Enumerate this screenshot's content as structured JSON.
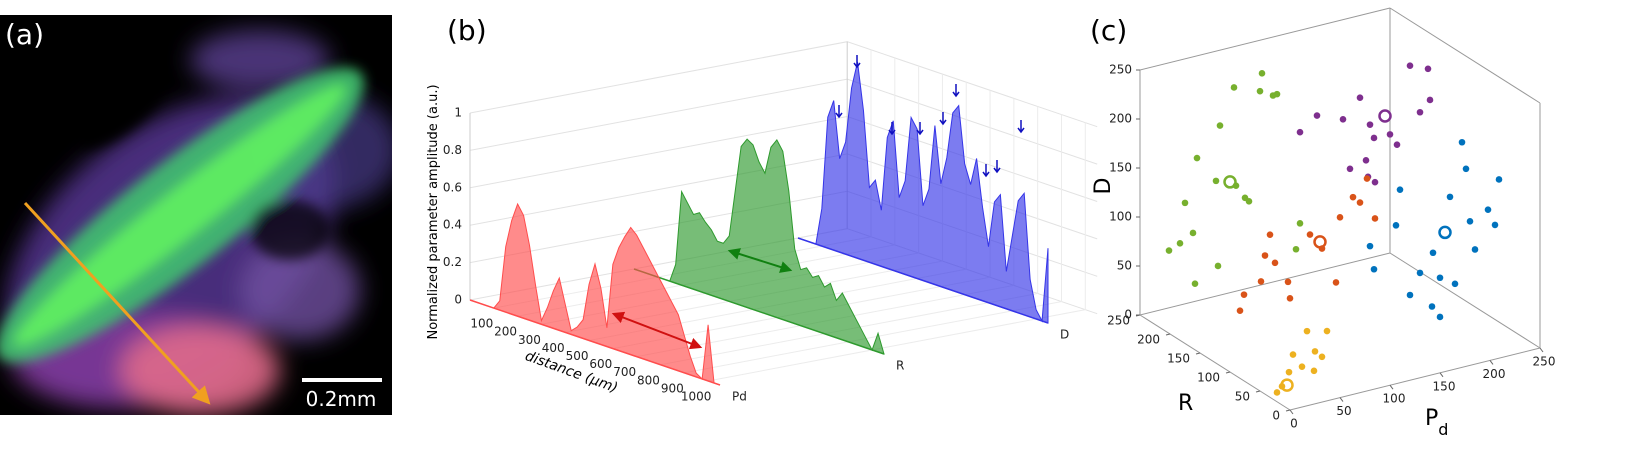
{
  "image_panel": {
    "label": "(a)",
    "scale_bar": "0.2mm"
  },
  "chart_data": [
    {
      "type": "waterfall3d",
      "label": "(b)",
      "zlabel": "Normalized parameter amplitude (a.u.)",
      "xlabel": "distance (μm)",
      "x": [
        0,
        25,
        50,
        75,
        100,
        125,
        150,
        175,
        200,
        225,
        250,
        275,
        300,
        325,
        350,
        375,
        400,
        425,
        450,
        475,
        500,
        525,
        550,
        575,
        600,
        625,
        650,
        675,
        700,
        725,
        750,
        775,
        800,
        825,
        850,
        875,
        900,
        925,
        950,
        975,
        1000,
        1025,
        1050
      ],
      "xlim": [
        0,
        1050
      ],
      "xticks": [
        100,
        200,
        300,
        400,
        500,
        600,
        700,
        800,
        900,
        1000
      ],
      "zlim": [
        0,
        1
      ],
      "zticks": [
        0,
        0.2,
        0.4,
        0.6,
        0.8,
        1
      ],
      "series": [
        {
          "name": "Pd",
          "color": "#ff4d4d",
          "values": [
            0,
            0,
            0,
            0,
            0,
            0.05,
            0.35,
            0.5,
            0.6,
            0.55,
            0.4,
            0.2,
            0.02,
            0.1,
            0.2,
            0.28,
            0.15,
            0.02,
            0.05,
            0.1,
            0.3,
            0.42,
            0.3,
            0.1,
            0.45,
            0.55,
            0.62,
            0.68,
            0.65,
            0.6,
            0.55,
            0.5,
            0.45,
            0.4,
            0.35,
            0.3,
            0.2,
            0.1,
            0.02,
            0,
            0.3,
            0,
            0
          ]
        },
        {
          "name": "R",
          "color": "#2e9a2e",
          "values": [
            0,
            0,
            0,
            0,
            0,
            0,
            0,
            0.1,
            0.5,
            0.45,
            0.4,
            0.42,
            0.38,
            0.35,
            0.3,
            0.3,
            0.35,
            0.6,
            0.85,
            0.9,
            0.88,
            0.8,
            0.75,
            0.9,
            0.95,
            0.9,
            0.7,
            0.4,
            0.3,
            0.32,
            0.28,
            0.3,
            0.25,
            0.28,
            0.2,
            0.25,
            0.2,
            0.15,
            0.1,
            0.05,
            0,
            0.1,
            0
          ]
        },
        {
          "name": "D",
          "color": "#3535e8",
          "values": [
            0,
            0,
            0,
            0,
            0.2,
            0.7,
            0.8,
            0.5,
            0.6,
            0.9,
            1.05,
            0.8,
            0.4,
            0.45,
            0.3,
            0.7,
            0.8,
            0.4,
            0.5,
            0.85,
            0.8,
            0.4,
            0.5,
            0.85,
            0.55,
            0.7,
            0.95,
            1.0,
            0.7,
            0.6,
            0.75,
            0.5,
            0.3,
            0.55,
            0.6,
            0.2,
            0.4,
            0.6,
            0.65,
            0.2,
            0.05,
            0,
            0.4
          ]
        }
      ]
    },
    {
      "type": "scatter3d",
      "label": "(c)",
      "xlabel": "P",
      "xlabel_subscript": "d",
      "ylabel": "R",
      "zlabel": "D",
      "xlim": [
        0,
        250
      ],
      "ylim": [
        0,
        250
      ],
      "zlim": [
        0,
        250
      ],
      "xticks": [
        0,
        50,
        100,
        150,
        200,
        250
      ],
      "yticks": [
        0,
        50,
        100,
        150,
        200,
        250
      ],
      "zticks": [
        0,
        50,
        100,
        150,
        200,
        250
      ],
      "series": [
        {
          "color": "#77b02e",
          "x": [
            10,
            5,
            20,
            15,
            30,
            40,
            50,
            70,
            90,
            100,
            110,
            60,
            75,
            85,
            45,
            25,
            120,
            95,
            130
          ],
          "y": [
            200,
            210,
            195,
            200,
            205,
            190,
            200,
            210,
            200,
            195,
            205,
            190,
            200,
            210,
            195,
            200,
            190,
            205,
            200
          ],
          "z": [
            90,
            80,
            100,
            130,
            170,
            150,
            200,
            230,
            225,
            220,
            215,
            140,
            120,
            110,
            60,
            45,
            60,
            240,
            80
          ],
          "center": [
            60,
            200,
            140
          ]
        },
        {
          "color": "#7e2f8e",
          "x": [
            100,
            120,
            140,
            160,
            170,
            180,
            150,
            165,
            190,
            200,
            210,
            225,
            230,
            220,
            160,
            175
          ],
          "y": [
            150,
            155,
            145,
            150,
            150,
            160,
            150,
            145,
            150,
            155,
            150,
            145,
            150,
            150,
            140,
            150
          ],
          "z": [
            200,
            210,
            205,
            220,
            190,
            170,
            150,
            140,
            175,
            160,
            240,
            235,
            200,
            190,
            160,
            130
          ],
          "center": [
            185,
            150,
            195
          ]
        },
        {
          "color": "#0072bd",
          "x": [
            110,
            120,
            130,
            150,
            160,
            170,
            175,
            180,
            190,
            200,
            205,
            210,
            215,
            225,
            235,
            245,
            180,
            195,
            140
          ],
          "y": [
            50,
            60,
            40,
            50,
            50,
            45,
            55,
            50,
            50,
            40,
            55,
            50,
            50,
            45,
            50,
            60,
            50,
            50,
            50
          ],
          "z": [
            120,
            90,
            140,
            60,
            80,
            100,
            40,
            30,
            150,
            180,
            200,
            120,
            90,
            130,
            110,
            150,
            70,
            60,
            170
          ],
          "center": [
            185,
            50,
            115
          ]
        },
        {
          "color": "#d95319",
          "x": [
            10,
            20,
            25,
            35,
            45,
            55,
            60,
            80,
            95,
            110,
            120,
            130,
            140,
            145,
            100,
            40
          ],
          "y": [
            100,
            110,
            90,
            100,
            100,
            95,
            100,
            100,
            105,
            100,
            95,
            100,
            105,
            100,
            90,
            100
          ],
          "z": [
            60,
            70,
            90,
            110,
            100,
            80,
            60,
            120,
            100,
            130,
            150,
            140,
            160,
            120,
            70,
            130
          ],
          "center": [
            90,
            100,
            110
          ]
        },
        {
          "color": "#edb120",
          "x": [
            10,
            20,
            30,
            40,
            50,
            55,
            35,
            15,
            45,
            5
          ],
          "y": [
            30,
            35,
            30,
            25,
            30,
            30,
            30,
            20,
            35,
            30
          ],
          "z": [
            10,
            20,
            25,
            40,
            30,
            55,
            60,
            45,
            15,
            5
          ],
          "center": [
            15,
            30,
            10
          ]
        }
      ]
    }
  ]
}
